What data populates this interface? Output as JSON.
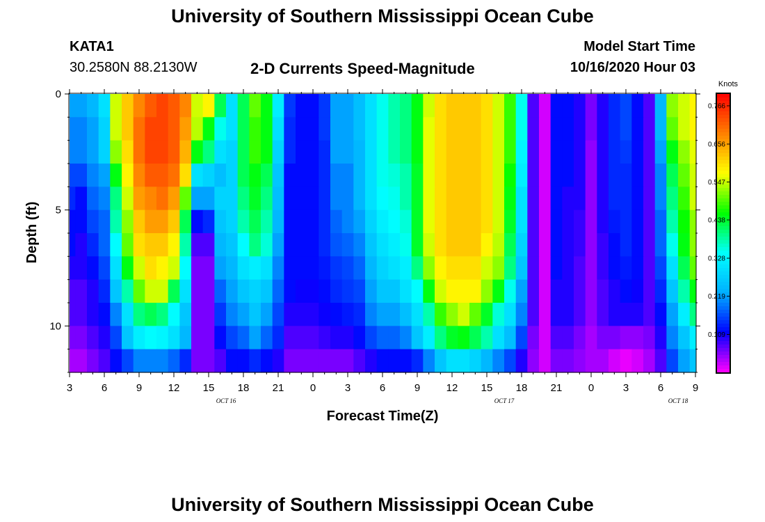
{
  "page": {
    "title_top": "University of Southern Mississippi Ocean Cube",
    "title_bottom": "University of Southern Mississippi Ocean Cube",
    "station": "KATA1",
    "location": "30.2580N 88.2130W",
    "model_start_label": "Model Start Time",
    "model_start_value": "10/16/2020 Hour 03"
  },
  "chart_data": {
    "type": "heatmap",
    "title": "2-D Currents Speed-Magnitude",
    "xlabel": "Forecast Time(Z)",
    "ylabel": "Depth (ft)",
    "x_ticks": [
      "3",
      "6",
      "9",
      "12",
      "15",
      "18",
      "21",
      "0",
      "3",
      "6",
      "9",
      "12",
      "15",
      "18",
      "21",
      "0",
      "3",
      "6",
      "9"
    ],
    "day_labels": [
      "OCT 16",
      "OCT 17",
      "OCT 18"
    ],
    "y_ticks": [
      "0",
      "5",
      "10"
    ],
    "xlim_hours": [
      0,
      54
    ],
    "ylim_ft": [
      0,
      12
    ],
    "colorbar_label": "Knots",
    "colorbar_ticks": [
      "0.766",
      "0.656",
      "0.547",
      "0.438",
      "0.328",
      "0.219",
      "0.109"
    ],
    "colorbar_range": [
      0,
      0.8
    ],
    "colorscale": [
      "#ff00ff",
      "#0000ff",
      "#00b0ff",
      "#00ffff",
      "#00ff00",
      "#ffff00",
      "#ff8000",
      "#ff0000"
    ],
    "time_step_hours": 1,
    "depth_levels_ft": [
      0.5,
      1.5,
      2.5,
      3.5,
      4.5,
      5.5,
      6.5,
      7.5,
      8.5,
      9.5,
      10.5,
      11.5
    ],
    "speed_knots": [
      [
        0.22,
        0.22,
        0.24,
        0.3,
        0.55,
        0.62,
        0.68,
        0.72,
        0.74,
        0.72,
        0.68,
        0.55,
        0.58,
        0.42,
        0.3,
        0.42,
        0.5,
        0.45,
        0.32,
        0.15,
        0.12,
        0.12,
        0.15,
        0.22,
        0.22,
        0.25,
        0.3,
        0.35,
        0.38,
        0.4,
        0.45,
        0.55,
        0.6,
        0.62,
        0.62,
        0.62,
        0.6,
        0.55,
        0.48,
        0.35,
        0.08,
        0.02,
        0.12,
        0.12,
        0.1,
        0.06,
        0.1,
        0.14,
        0.16,
        0.12,
        0.08,
        0.24,
        0.52,
        0.55,
        0.58
      ],
      [
        0.2,
        0.2,
        0.22,
        0.28,
        0.55,
        0.62,
        0.7,
        0.74,
        0.74,
        0.72,
        0.66,
        0.54,
        0.45,
        0.35,
        0.3,
        0.42,
        0.48,
        0.45,
        0.3,
        0.14,
        0.12,
        0.12,
        0.15,
        0.22,
        0.22,
        0.25,
        0.3,
        0.35,
        0.38,
        0.4,
        0.45,
        0.56,
        0.6,
        0.62,
        0.62,
        0.62,
        0.6,
        0.55,
        0.48,
        0.35,
        0.08,
        0.02,
        0.12,
        0.12,
        0.1,
        0.06,
        0.1,
        0.14,
        0.16,
        0.12,
        0.08,
        0.24,
        0.5,
        0.55,
        0.58
      ],
      [
        0.2,
        0.2,
        0.22,
        0.28,
        0.52,
        0.6,
        0.7,
        0.74,
        0.74,
        0.72,
        0.64,
        0.45,
        0.4,
        0.3,
        0.28,
        0.42,
        0.48,
        0.45,
        0.28,
        0.14,
        0.12,
        0.12,
        0.14,
        0.22,
        0.22,
        0.24,
        0.3,
        0.35,
        0.38,
        0.4,
        0.45,
        0.56,
        0.6,
        0.62,
        0.62,
        0.62,
        0.6,
        0.55,
        0.48,
        0.33,
        0.08,
        0.02,
        0.12,
        0.12,
        0.1,
        0.05,
        0.1,
        0.14,
        0.15,
        0.12,
        0.08,
        0.22,
        0.45,
        0.52,
        0.56
      ],
      [
        0.16,
        0.16,
        0.2,
        0.22,
        0.45,
        0.58,
        0.68,
        0.72,
        0.72,
        0.7,
        0.6,
        0.3,
        0.28,
        0.25,
        0.28,
        0.42,
        0.45,
        0.42,
        0.26,
        0.12,
        0.12,
        0.12,
        0.14,
        0.2,
        0.2,
        0.24,
        0.3,
        0.35,
        0.36,
        0.38,
        0.44,
        0.56,
        0.6,
        0.62,
        0.62,
        0.62,
        0.6,
        0.55,
        0.46,
        0.32,
        0.08,
        0.02,
        0.12,
        0.12,
        0.1,
        0.05,
        0.1,
        0.14,
        0.14,
        0.12,
        0.08,
        0.2,
        0.42,
        0.5,
        0.55
      ],
      [
        0.14,
        0.12,
        0.18,
        0.2,
        0.4,
        0.55,
        0.66,
        0.68,
        0.7,
        0.66,
        0.5,
        0.22,
        0.22,
        0.28,
        0.28,
        0.4,
        0.44,
        0.4,
        0.25,
        0.12,
        0.12,
        0.12,
        0.14,
        0.2,
        0.2,
        0.24,
        0.3,
        0.34,
        0.35,
        0.38,
        0.44,
        0.56,
        0.6,
        0.62,
        0.62,
        0.62,
        0.6,
        0.55,
        0.45,
        0.3,
        0.08,
        0.02,
        0.12,
        0.1,
        0.1,
        0.05,
        0.1,
        0.14,
        0.14,
        0.12,
        0.08,
        0.2,
        0.4,
        0.48,
        0.55
      ],
      [
        0.12,
        0.12,
        0.16,
        0.18,
        0.38,
        0.52,
        0.62,
        0.66,
        0.66,
        0.62,
        0.42,
        0.12,
        0.14,
        0.26,
        0.28,
        0.38,
        0.42,
        0.38,
        0.24,
        0.12,
        0.12,
        0.12,
        0.14,
        0.18,
        0.2,
        0.22,
        0.28,
        0.32,
        0.34,
        0.36,
        0.44,
        0.56,
        0.6,
        0.62,
        0.62,
        0.62,
        0.6,
        0.55,
        0.44,
        0.3,
        0.08,
        0.02,
        0.12,
        0.1,
        0.09,
        0.05,
        0.1,
        0.13,
        0.14,
        0.12,
        0.08,
        0.18,
        0.38,
        0.46,
        0.52
      ],
      [
        0.12,
        0.1,
        0.14,
        0.18,
        0.34,
        0.5,
        0.6,
        0.62,
        0.62,
        0.58,
        0.38,
        0.08,
        0.08,
        0.24,
        0.26,
        0.34,
        0.4,
        0.36,
        0.22,
        0.12,
        0.12,
        0.12,
        0.14,
        0.17,
        0.18,
        0.2,
        0.26,
        0.3,
        0.32,
        0.35,
        0.44,
        0.55,
        0.6,
        0.62,
        0.62,
        0.62,
        0.58,
        0.54,
        0.42,
        0.28,
        0.08,
        0.02,
        0.12,
        0.1,
        0.09,
        0.05,
        0.09,
        0.12,
        0.14,
        0.12,
        0.08,
        0.18,
        0.35,
        0.45,
        0.52
      ],
      [
        0.1,
        0.1,
        0.12,
        0.16,
        0.3,
        0.45,
        0.55,
        0.6,
        0.58,
        0.55,
        0.34,
        0.06,
        0.06,
        0.22,
        0.24,
        0.3,
        0.32,
        0.3,
        0.2,
        0.12,
        0.12,
        0.12,
        0.13,
        0.15,
        0.16,
        0.18,
        0.24,
        0.28,
        0.3,
        0.32,
        0.4,
        0.52,
        0.58,
        0.6,
        0.6,
        0.6,
        0.55,
        0.52,
        0.4,
        0.26,
        0.08,
        0.02,
        0.12,
        0.1,
        0.08,
        0.05,
        0.09,
        0.12,
        0.13,
        0.12,
        0.08,
        0.16,
        0.3,
        0.42,
        0.5
      ],
      [
        0.08,
        0.08,
        0.1,
        0.14,
        0.26,
        0.38,
        0.5,
        0.55,
        0.55,
        0.42,
        0.3,
        0.06,
        0.06,
        0.18,
        0.22,
        0.26,
        0.28,
        0.26,
        0.18,
        0.12,
        0.11,
        0.11,
        0.12,
        0.14,
        0.15,
        0.16,
        0.22,
        0.26,
        0.26,
        0.3,
        0.34,
        0.45,
        0.55,
        0.58,
        0.58,
        0.58,
        0.52,
        0.45,
        0.35,
        0.22,
        0.08,
        0.02,
        0.1,
        0.1,
        0.08,
        0.05,
        0.08,
        0.1,
        0.12,
        0.11,
        0.08,
        0.14,
        0.26,
        0.38,
        0.45
      ],
      [
        0.08,
        0.08,
        0.1,
        0.12,
        0.2,
        0.3,
        0.4,
        0.42,
        0.4,
        0.34,
        0.26,
        0.06,
        0.06,
        0.15,
        0.2,
        0.22,
        0.26,
        0.22,
        0.16,
        0.1,
        0.1,
        0.1,
        0.11,
        0.12,
        0.13,
        0.14,
        0.2,
        0.22,
        0.22,
        0.25,
        0.3,
        0.38,
        0.48,
        0.52,
        0.55,
        0.5,
        0.44,
        0.36,
        0.3,
        0.2,
        0.08,
        0.02,
        0.1,
        0.1,
        0.08,
        0.05,
        0.08,
        0.1,
        0.1,
        0.1,
        0.08,
        0.12,
        0.22,
        0.32,
        0.4
      ],
      [
        0.06,
        0.06,
        0.08,
        0.1,
        0.16,
        0.26,
        0.32,
        0.34,
        0.33,
        0.3,
        0.24,
        0.06,
        0.06,
        0.12,
        0.16,
        0.18,
        0.22,
        0.18,
        0.14,
        0.08,
        0.08,
        0.08,
        0.09,
        0.1,
        0.1,
        0.12,
        0.16,
        0.18,
        0.18,
        0.2,
        0.26,
        0.32,
        0.4,
        0.44,
        0.45,
        0.42,
        0.38,
        0.3,
        0.25,
        0.16,
        0.06,
        0.02,
        0.08,
        0.08,
        0.06,
        0.04,
        0.06,
        0.06,
        0.05,
        0.05,
        0.06,
        0.1,
        0.2,
        0.26,
        0.32
      ],
      [
        0.04,
        0.04,
        0.06,
        0.08,
        0.12,
        0.16,
        0.2,
        0.2,
        0.2,
        0.18,
        0.14,
        0.06,
        0.06,
        0.08,
        0.12,
        0.12,
        0.14,
        0.12,
        0.1,
        0.06,
        0.06,
        0.06,
        0.06,
        0.06,
        0.06,
        0.08,
        0.1,
        0.12,
        0.12,
        0.12,
        0.14,
        0.2,
        0.26,
        0.3,
        0.3,
        0.28,
        0.24,
        0.2,
        0.16,
        0.1,
        0.05,
        0.02,
        0.06,
        0.06,
        0.05,
        0.04,
        0.04,
        0.02,
        0.01,
        0.02,
        0.04,
        0.08,
        0.16,
        0.22,
        0.26
      ]
    ]
  }
}
